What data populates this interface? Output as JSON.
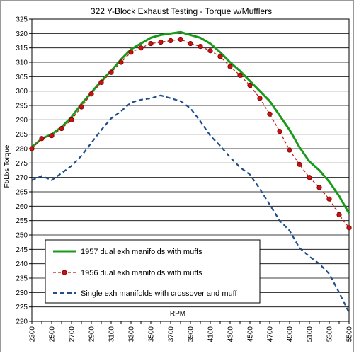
{
  "chart_data": {
    "type": "line",
    "title": "322 Y-Block Exhaust Testing - Torque w/Mufflers",
    "xlabel": "RPM",
    "ylabel": "Ft/Lbs Torque",
    "xlim": [
      2300,
      5500
    ],
    "ylim": [
      220,
      325
    ],
    "y_ticks": [
      220,
      225,
      230,
      235,
      240,
      245,
      250,
      255,
      260,
      265,
      270,
      275,
      280,
      285,
      290,
      295,
      300,
      305,
      310,
      315,
      320,
      325
    ],
    "x_ticks": [
      2300,
      2500,
      2700,
      2900,
      3100,
      3300,
      3500,
      3700,
      3900,
      4100,
      4300,
      4500,
      4700,
      4900,
      5100,
      5300,
      5500
    ],
    "grid": "horizontal",
    "legend_position": "bottom-left",
    "series": [
      {
        "name": "1957 dual exh manifolds with muffs",
        "color": "#1a9a1a",
        "style": "solid",
        "marker": "none",
        "x": [
          2300,
          2400,
          2500,
          2600,
          2700,
          2800,
          2900,
          3000,
          3100,
          3200,
          3300,
          3400,
          3500,
          3600,
          3700,
          3800,
          3900,
          4000,
          4100,
          4200,
          4300,
          4400,
          4500,
          4600,
          4700,
          4800,
          4900,
          5000,
          5100,
          5200,
          5300,
          5400,
          5500
        ],
        "y": [
          280.5,
          283.5,
          285.0,
          287.5,
          291.0,
          295.5,
          299.5,
          303.5,
          307.0,
          311.0,
          314.5,
          316.5,
          318.5,
          319.5,
          320.0,
          320.5,
          319.5,
          318.5,
          316.5,
          313.5,
          310.0,
          307.0,
          303.5,
          300.0,
          296.5,
          291.5,
          286.5,
          280.5,
          275.5,
          272.5,
          268.5,
          263.5,
          257.5
        ]
      },
      {
        "name": "1956 dual exh manifolds with muffs",
        "color": "#cc1111",
        "style": "dashed",
        "marker": "circle",
        "x": [
          2300,
          2400,
          2500,
          2600,
          2700,
          2800,
          2900,
          3000,
          3100,
          3200,
          3300,
          3400,
          3500,
          3600,
          3700,
          3800,
          3900,
          4000,
          4100,
          4200,
          4300,
          4400,
          4500,
          4600,
          4700,
          4800,
          4900,
          5000,
          5100,
          5200,
          5300,
          5400,
          5500
        ],
        "y": [
          280.0,
          283.5,
          284.5,
          287.0,
          290.0,
          294.5,
          299.0,
          303.0,
          306.5,
          310.0,
          313.5,
          315.0,
          316.5,
          317.0,
          317.5,
          318.0,
          316.5,
          315.5,
          314.0,
          312.0,
          308.5,
          305.5,
          302.0,
          297.5,
          292.0,
          286.0,
          279.5,
          274.5,
          270.0,
          266.5,
          262.5,
          257.0,
          252.5
        ]
      },
      {
        "name": "Single exh manifolds with crossover and muff",
        "color": "#1f4e8c",
        "style": "dashed",
        "marker": "none",
        "x": [
          2300,
          2400,
          2500,
          2600,
          2700,
          2800,
          2900,
          3000,
          3100,
          3200,
          3300,
          3400,
          3500,
          3600,
          3700,
          3800,
          3900,
          4000,
          4100,
          4200,
          4300,
          4400,
          4500,
          4600,
          4700,
          4800,
          4900,
          5000,
          5100,
          5200,
          5300,
          5400,
          5500
        ],
        "y": [
          269.0,
          270.5,
          269.0,
          271.5,
          274.0,
          277.5,
          282.0,
          286.5,
          290.5,
          293.0,
          296.0,
          297.0,
          297.5,
          298.5,
          297.5,
          296.5,
          294.0,
          289.5,
          284.5,
          281.0,
          277.0,
          273.5,
          271.0,
          266.0,
          260.5,
          255.0,
          251.5,
          245.5,
          242.5,
          240.0,
          236.5,
          230.0,
          223.0
        ]
      }
    ]
  }
}
